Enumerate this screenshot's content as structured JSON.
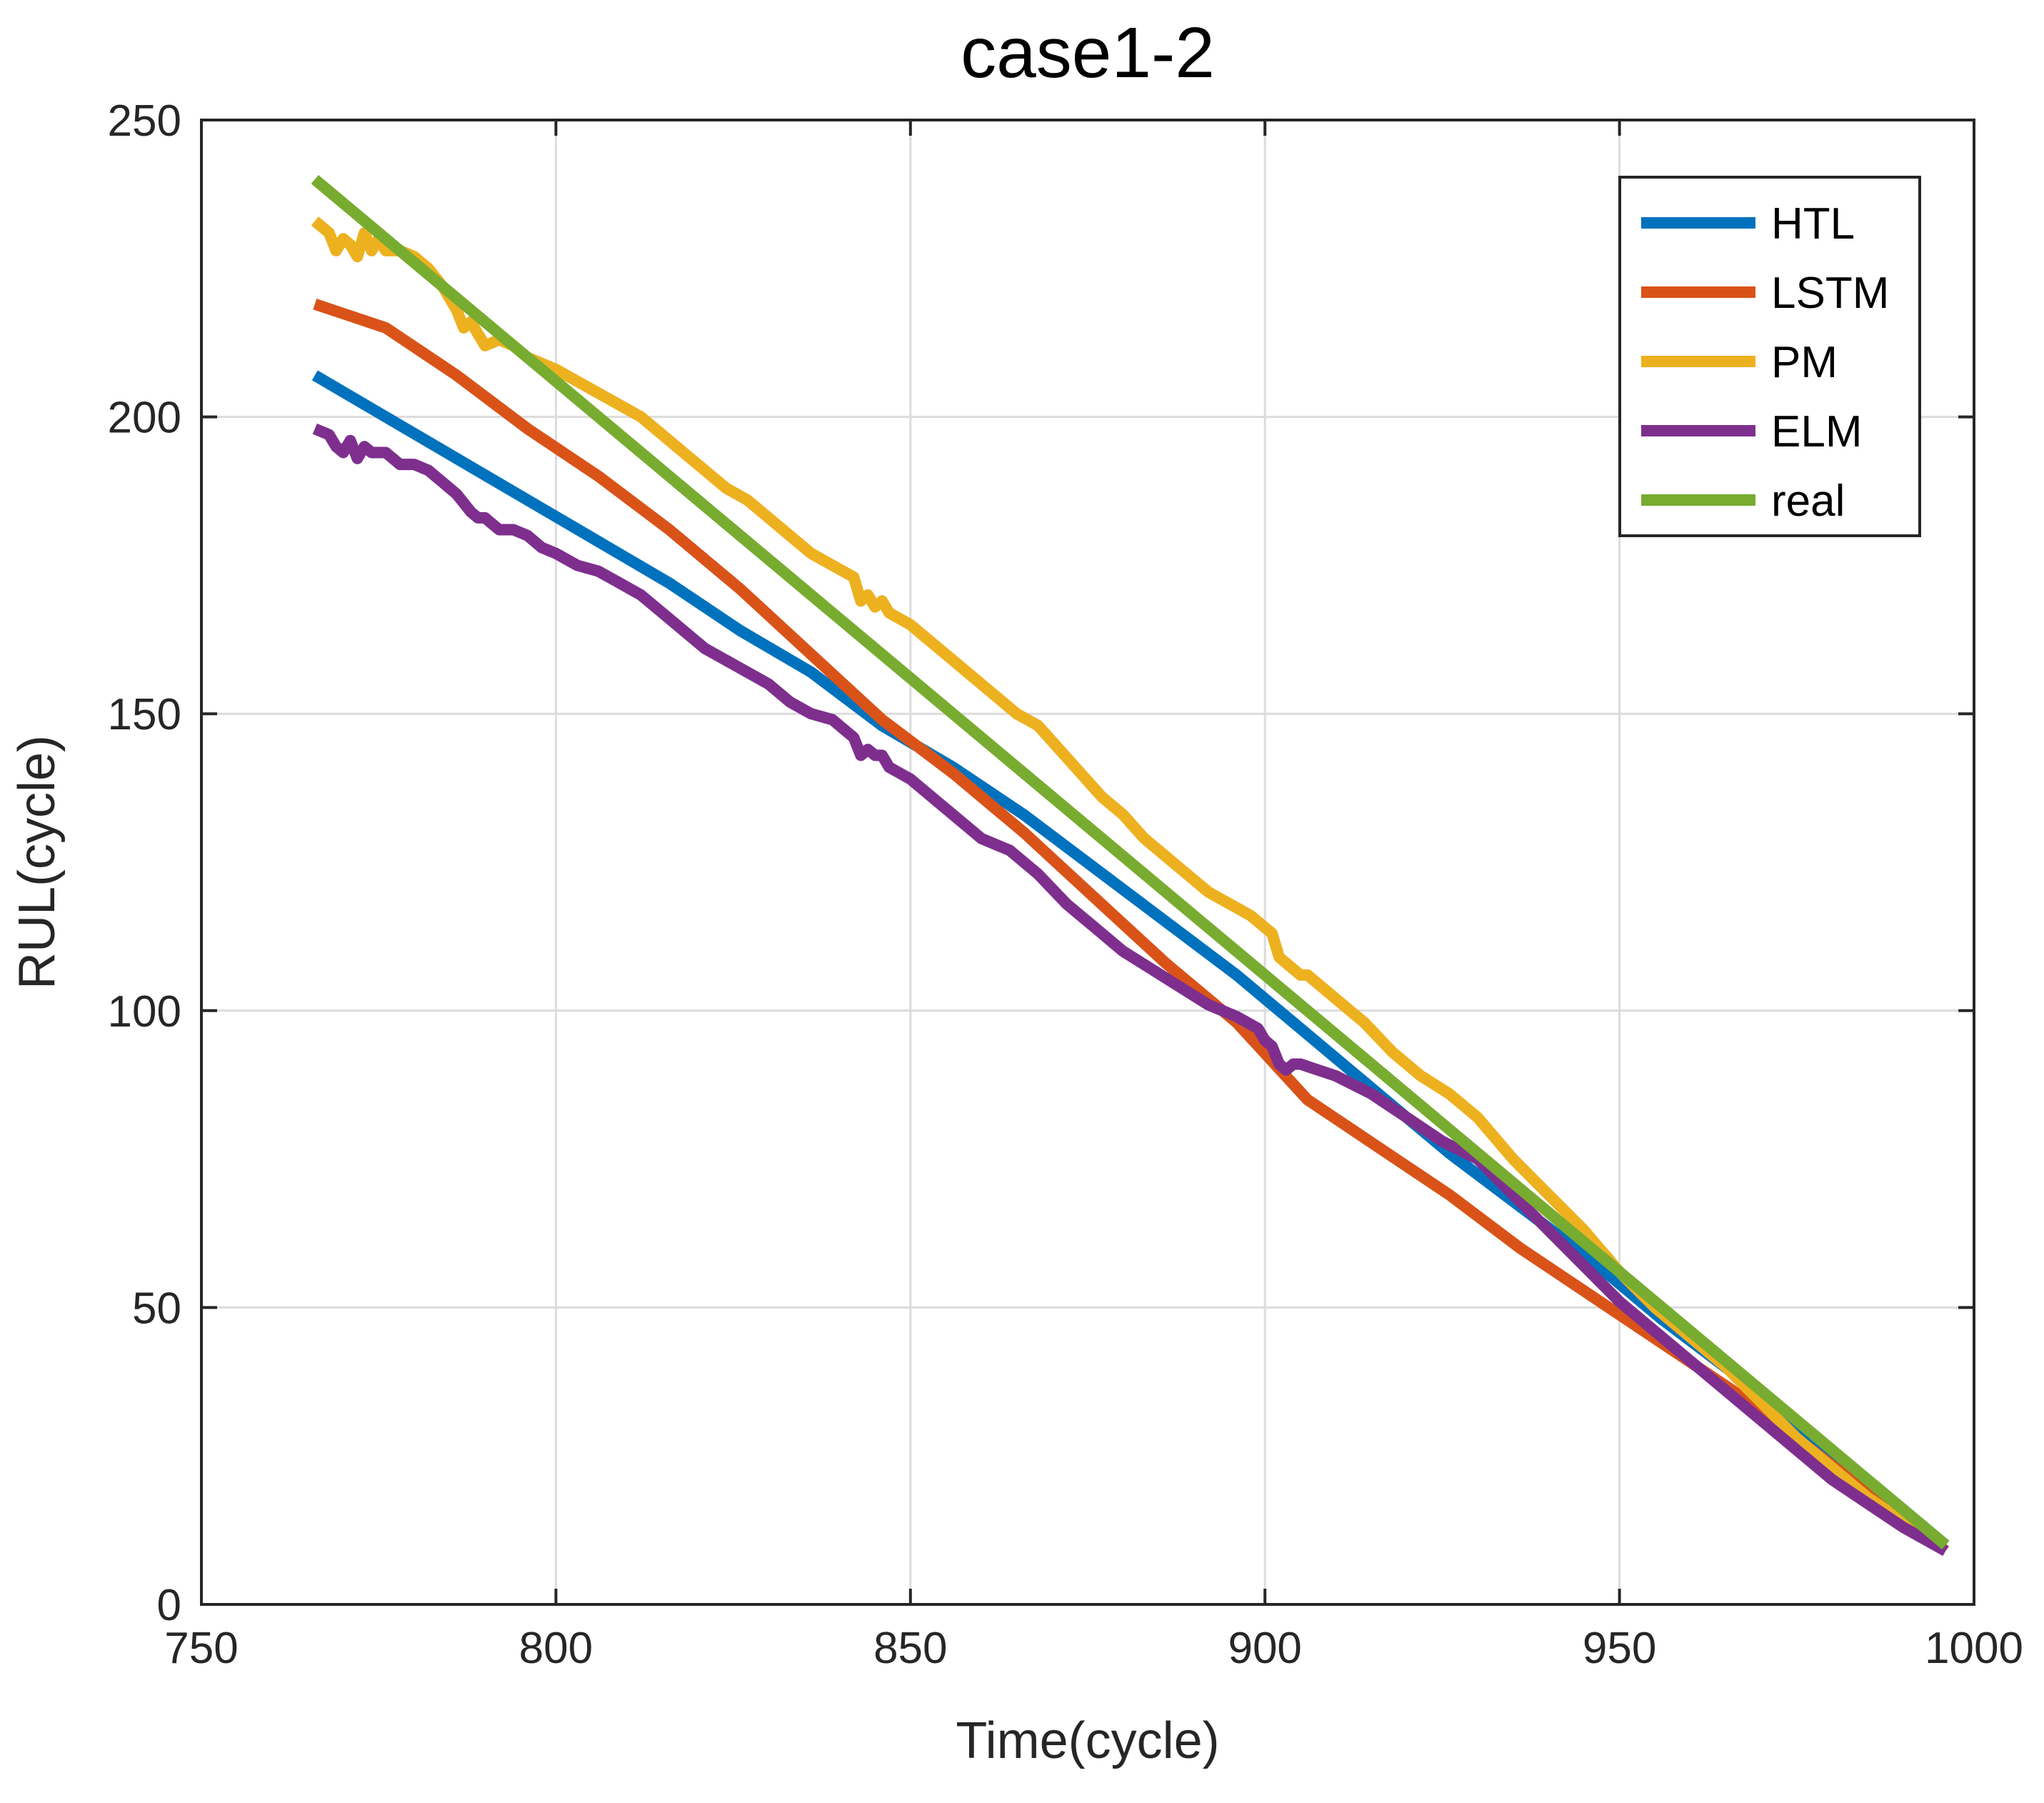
{
  "chart_data": {
    "type": "line",
    "title": "case1-2",
    "xlabel": "Time(cycle)",
    "ylabel": "RUL(cycle)",
    "xlim": [
      750,
      1000
    ],
    "ylim": [
      0,
      250
    ],
    "xticks": [
      750,
      800,
      850,
      900,
      950,
      1000
    ],
    "yticks": [
      0,
      50,
      100,
      150,
      200,
      250
    ],
    "xtick_labels": [
      "750",
      "800",
      "850",
      "900",
      "950",
      "1000"
    ],
    "ytick_labels": [
      "0",
      "50",
      "100",
      "150",
      "200",
      "250"
    ],
    "grid": true,
    "legend_position": "top-right",
    "series": [
      {
        "name": "HTL",
        "color": "#0072BD",
        "x": [
          766,
          776,
          786,
          796,
          806,
          816,
          826,
          836,
          846,
          856,
          866,
          876,
          886,
          896,
          906,
          916,
          926,
          936,
          946,
          956,
          966,
          976,
          986,
          996
        ],
        "y": [
          207,
          200,
          193,
          186,
          179,
          172,
          164,
          157,
          148,
          141,
          133,
          124,
          115,
          106,
          96,
          86,
          76,
          67,
          58,
          48,
          39,
          29,
          20,
          10
        ]
      },
      {
        "name": "LSTM",
        "color": "#D95319",
        "x": [
          766,
          776,
          786,
          796,
          806,
          816,
          826,
          836,
          846,
          856,
          866,
          876,
          886,
          896,
          906,
          916,
          926,
          936,
          946,
          956,
          966,
          976,
          986,
          996
        ],
        "y": [
          219,
          215,
          207,
          198,
          190,
          181,
          171,
          160,
          149,
          140,
          130,
          119,
          108,
          98,
          85,
          77,
          69,
          60,
          52,
          44,
          36,
          27,
          18,
          9
        ]
      },
      {
        "name": "PM",
        "color": "#EDB120",
        "x": [
          766,
          768,
          769,
          770,
          771,
          772,
          773,
          774,
          775,
          776,
          778,
          780,
          782,
          784,
          786,
          787,
          788,
          790,
          792,
          794,
          796,
          798,
          800,
          803,
          806,
          809,
          812,
          815,
          818,
          821,
          824,
          827,
          830,
          833,
          836,
          839,
          842,
          843,
          844,
          845,
          846,
          847,
          850,
          853,
          856,
          859,
          862,
          865,
          868,
          871,
          874,
          877,
          880,
          883,
          886,
          889,
          892,
          895,
          898,
          901,
          902,
          903,
          904,
          905,
          906,
          910,
          914,
          918,
          922,
          926,
          930,
          935,
          940,
          945,
          950,
          955,
          960,
          965,
          970,
          975,
          980,
          985,
          990,
          996
        ],
        "y": [
          233,
          231,
          228,
          230,
          229,
          227,
          231,
          228,
          230,
          228,
          228,
          227,
          225,
          222,
          218,
          215,
          216,
          212,
          213,
          212,
          210,
          209,
          208,
          206,
          204,
          202,
          200,
          197,
          194,
          191,
          188,
          186,
          183,
          180,
          177,
          175,
          173,
          169,
          170,
          168,
          169,
          167,
          165,
          162,
          159,
          156,
          153,
          150,
          148,
          144,
          140,
          136,
          133,
          129,
          126,
          123,
          120,
          118,
          116,
          113,
          109,
          108,
          107,
          106,
          106,
          102,
          98,
          93,
          89,
          86,
          82,
          75,
          69,
          63,
          56,
          50,
          45,
          40,
          34,
          28,
          23,
          18,
          14,
          10
        ]
      },
      {
        "name": "ELM",
        "color": "#7E2F8E",
        "x": [
          766,
          768,
          769,
          770,
          771,
          772,
          773,
          774,
          776,
          778,
          780,
          782,
          784,
          786,
          788,
          789,
          790,
          791,
          792,
          794,
          796,
          798,
          800,
          803,
          806,
          809,
          812,
          815,
          818,
          821,
          824,
          827,
          830,
          833,
          836,
          839,
          841,
          842,
          843,
          844,
          845,
          846,
          847,
          850,
          853,
          856,
          860,
          864,
          868,
          872,
          876,
          880,
          884,
          888,
          892,
          896,
          899,
          900,
          901,
          902,
          903,
          904,
          905,
          910,
          915,
          920,
          925,
          930,
          935,
          940,
          945,
          950,
          955,
          960,
          965,
          970,
          975,
          980,
          985,
          990,
          996
        ],
        "y": [
          198,
          197,
          195,
          194,
          196,
          193,
          195,
          194,
          194,
          192,
          192,
          191,
          189,
          187,
          184,
          183,
          183,
          182,
          181,
          181,
          180,
          178,
          177,
          175,
          174,
          172,
          170,
          167,
          164,
          161,
          159,
          157,
          155,
          152,
          150,
          149,
          147,
          146,
          143,
          144,
          143,
          143,
          141,
          139,
          136,
          133,
          129,
          127,
          123,
          118,
          114,
          110,
          107,
          104,
          101,
          99,
          97,
          95,
          94,
          91,
          90,
          91,
          91,
          89,
          86,
          82,
          78,
          75,
          69,
          63,
          57,
          51,
          46,
          41,
          36,
          31,
          26,
          21,
          17,
          13,
          9
        ]
      },
      {
        "name": "real",
        "color": "#77AC30",
        "x": [
          766,
          996
        ],
        "y": [
          240,
          10
        ]
      }
    ]
  }
}
